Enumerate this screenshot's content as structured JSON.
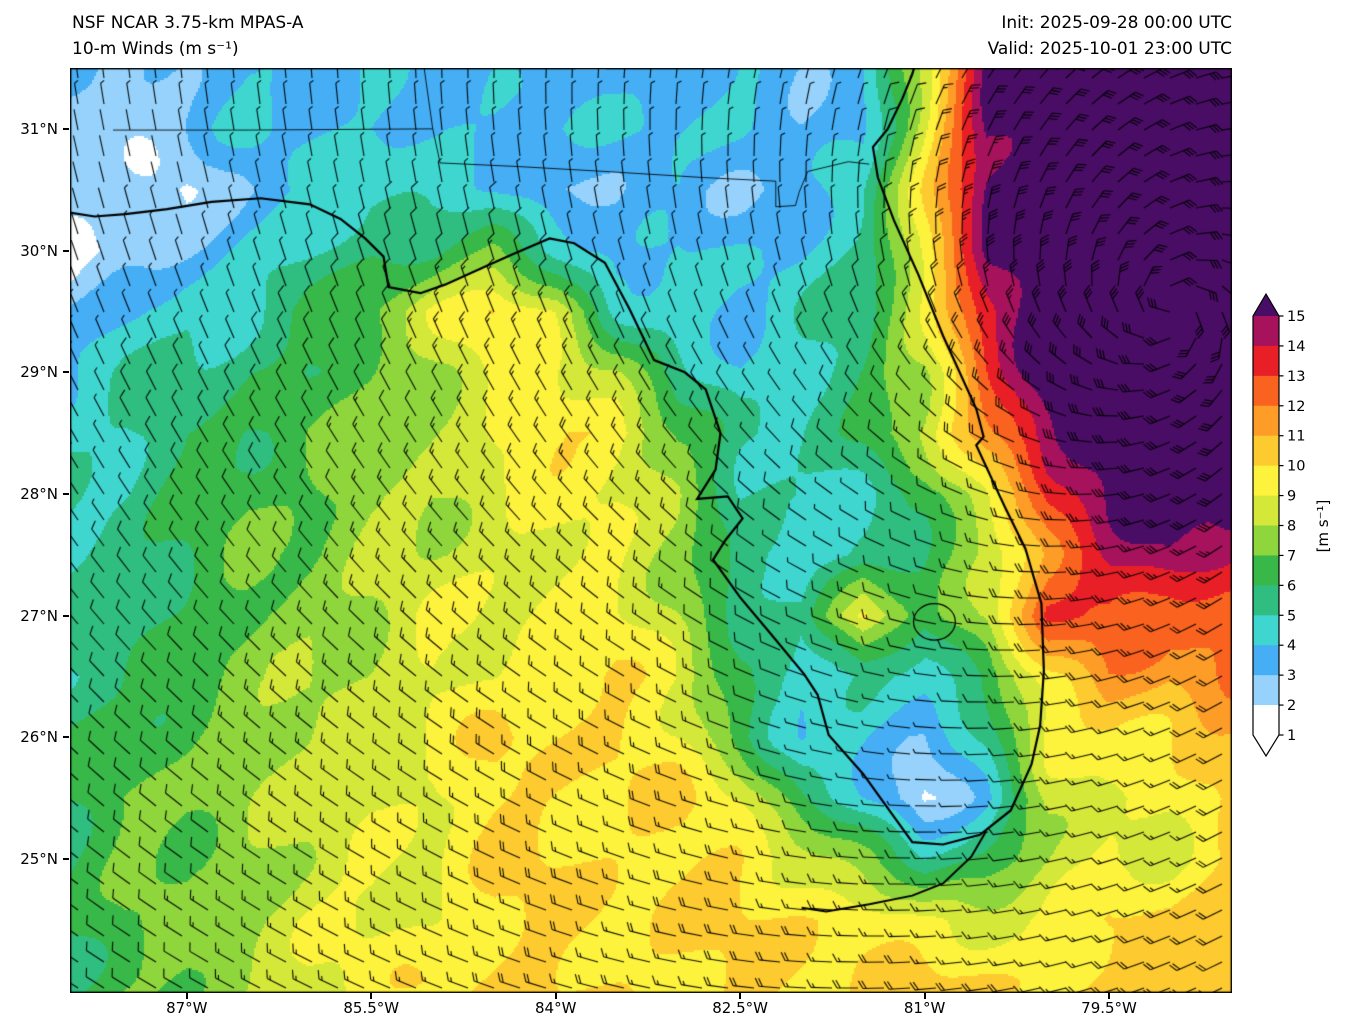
{
  "header": {
    "model": "NSF NCAR 3.75-km MPAS-A",
    "product": "10-m Winds (m s⁻¹)",
    "init": "Init: 2025-09-28 00:00 UTC",
    "valid": "Valid: 2025-10-01 23:00 UTC"
  },
  "chart_data": {
    "type": "heatmap",
    "title": "NSF NCAR 3.75-km MPAS-A 10-m Winds (m s⁻¹)",
    "init_time": "2025-09-28 00:00 UTC",
    "valid_time": "2025-10-01 23:00 UTC",
    "x_tick_labels": [
      "87°W",
      "85.5°W",
      "84°W",
      "82.5°W",
      "81°W",
      "79.5°W"
    ],
    "x_tick_values": [
      -87,
      -85.5,
      -84,
      -82.5,
      -81,
      -79.5
    ],
    "y_tick_labels": [
      "25°N",
      "26°N",
      "27°N",
      "28°N",
      "29°N",
      "30°N",
      "31°N"
    ],
    "y_tick_values": [
      25,
      26,
      27,
      28,
      29,
      30,
      31
    ],
    "lon_range": [
      -87.95,
      -78.5
    ],
    "lat_range": [
      23.9,
      31.5
    ],
    "grid": false,
    "colorbar": {
      "label": "[m s⁻¹]",
      "ticks": [
        1,
        2,
        3,
        4,
        5,
        6,
        7,
        8,
        9,
        10,
        11,
        12,
        13,
        14,
        15
      ],
      "segment_colors": [
        "#ffffff",
        "#96d2fb",
        "#45aef5",
        "#3fd6d0",
        "#2fbd80",
        "#38b848",
        "#8ed63c",
        "#d4e83a",
        "#fdf23c",
        "#fdca30",
        "#fd9d28",
        "#fa631f",
        "#e81f27",
        "#a6125c"
      ],
      "under_color": "#ffffff",
      "over_color": "#4a0d66"
    },
    "barb_convention": "half barb = 2.5 m s⁻¹, full barb = 5 m s⁻¹",
    "cyclone_center": {
      "lon": -79.0,
      "lat": 29.5
    },
    "wind_field": {
      "units": "m s⁻¹",
      "lons": [
        -88,
        -87.5,
        -87,
        -86.5,
        -86,
        -85.5,
        -85,
        -84.5,
        -84,
        -83.5,
        -83,
        -82.5,
        -82,
        -81.5,
        -81,
        -80.5,
        -80,
        -79.5,
        -79,
        -78.5
      ],
      "lats": [
        31.5,
        31,
        30.5,
        30,
        29.5,
        29,
        28.5,
        28,
        27.5,
        27,
        26.5,
        26,
        25.5,
        25,
        24.5,
        24
      ],
      "speeds": [
        [
          4,
          3,
          3,
          4,
          4,
          4,
          3,
          4,
          3,
          3,
          4,
          4,
          3,
          4,
          8,
          15,
          16,
          16,
          16,
          16
        ],
        [
          2,
          2,
          3,
          4,
          4,
          4,
          4,
          4,
          4,
          4,
          4,
          4,
          3,
          4,
          9,
          15,
          16,
          16,
          16,
          16
        ],
        [
          2,
          3,
          2,
          3,
          4,
          5,
          4,
          4,
          3,
          3,
          4,
          3,
          3,
          5,
          10,
          15,
          16,
          16,
          16,
          16
        ],
        [
          1,
          2,
          3,
          4,
          5,
          6,
          6,
          7,
          5,
          3,
          4,
          4,
          4,
          5,
          10,
          15,
          16,
          16,
          16,
          16
        ],
        [
          3,
          4,
          5,
          5,
          6,
          7,
          9,
          10,
          9,
          5,
          4,
          4,
          5,
          5,
          9,
          14,
          16,
          16,
          16,
          16
        ],
        [
          4,
          5,
          5,
          6,
          6,
          7,
          8,
          9,
          9,
          8,
          5,
          4,
          5,
          6,
          8,
          13,
          16,
          16,
          16,
          16
        ],
        [
          5,
          5,
          6,
          6,
          7,
          7,
          8,
          9,
          10,
          10,
          7,
          5,
          5,
          6,
          8,
          12,
          15,
          16,
          16,
          16
        ],
        [
          5,
          5,
          6,
          7,
          7,
          8,
          8,
          9,
          9,
          9,
          8,
          5,
          5,
          5,
          6,
          9,
          13,
          15,
          16,
          16
        ],
        [
          5,
          6,
          6,
          7,
          7,
          8,
          8,
          9,
          9,
          9,
          8,
          5,
          4,
          5,
          6,
          8,
          12,
          14,
          15,
          14
        ],
        [
          5,
          6,
          6,
          7,
          8,
          8,
          9,
          9,
          9,
          9,
          8,
          6,
          5,
          10,
          6,
          8,
          13,
          13,
          12,
          13
        ],
        [
          5,
          6,
          7,
          7,
          8,
          8,
          9,
          9,
          10,
          10,
          9,
          6,
          4,
          5,
          5,
          6,
          10,
          12,
          11,
          12
        ],
        [
          6,
          6,
          7,
          8,
          8,
          9,
          9,
          10,
          10,
          10,
          9,
          7,
          4,
          4,
          3,
          5,
          9,
          10,
          10,
          11
        ],
        [
          6,
          7,
          7,
          8,
          8,
          9,
          9,
          10,
          10,
          10,
          10,
          9,
          6,
          4,
          2,
          4,
          8,
          9,
          9,
          10
        ],
        [
          6,
          7,
          7,
          8,
          8,
          9,
          9,
          10,
          10,
          10,
          10,
          10,
          9,
          7,
          5,
          6,
          8,
          9,
          9,
          10
        ],
        [
          6,
          7,
          7,
          8,
          9,
          9,
          9,
          10,
          10,
          10,
          10,
          10,
          10,
          10,
          9,
          9,
          9,
          10,
          10,
          11
        ],
        [
          6,
          7,
          7,
          8,
          9,
          9,
          10,
          10,
          10,
          10,
          10,
          10,
          10,
          10,
          10,
          10,
          10,
          10,
          11,
          11
        ]
      ]
    }
  }
}
